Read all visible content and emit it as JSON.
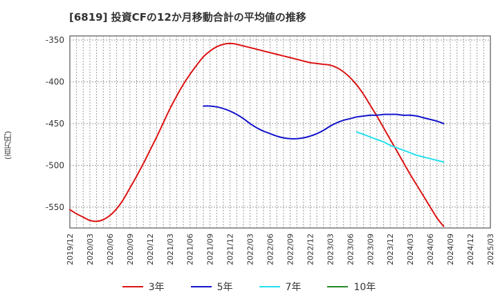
{
  "chart_data": {
    "type": "line",
    "title": "[6819]  投資CFの12か月移動合計の平均値の推移",
    "ylabel": "(百万円)",
    "xlabel": "",
    "ylim": [
      -575,
      -345
    ],
    "yticks": [
      -350,
      -400,
      -450,
      -500,
      -550
    ],
    "ytick_labels": [
      "-350",
      "-400",
      "-450",
      "-500",
      "-550"
    ],
    "xtick_labels": [
      "2019/12",
      "2020/03",
      "2020/06",
      "2020/09",
      "2020/12",
      "2021/03",
      "2021/06",
      "2021/09",
      "2021/12",
      "2022/03",
      "2022/06",
      "2022/09",
      "2022/12",
      "2023/03",
      "2023/06",
      "2023/09",
      "2023/12",
      "2024/03",
      "2024/06",
      "2024/09",
      "2024/12",
      "2025/03"
    ],
    "grid": true,
    "legend_position": "bottom",
    "series": [
      {
        "name": "3年",
        "color": "#dd1111",
        "points": [
          [
            "2019/12",
            -553
          ],
          [
            "2020/01",
            -558
          ],
          [
            "2020/02",
            -562
          ],
          [
            "2020/03",
            -566
          ],
          [
            "2020/04",
            -567
          ],
          [
            "2020/05",
            -565
          ],
          [
            "2020/06",
            -560
          ],
          [
            "2020/07",
            -552
          ],
          [
            "2020/08",
            -541
          ],
          [
            "2020/09",
            -527
          ],
          [
            "2020/10",
            -513
          ],
          [
            "2020/11",
            -498
          ],
          [
            "2020/12",
            -482
          ],
          [
            "2021/01",
            -466
          ],
          [
            "2021/02",
            -449
          ],
          [
            "2021/03",
            -432
          ],
          [
            "2021/04",
            -417
          ],
          [
            "2021/05",
            -403
          ],
          [
            "2021/06",
            -391
          ],
          [
            "2021/07",
            -380
          ],
          [
            "2021/08",
            -370
          ],
          [
            "2021/09",
            -363
          ],
          [
            "2021/10",
            -358
          ],
          [
            "2021/11",
            -355
          ],
          [
            "2021/12",
            -354
          ],
          [
            "2022/01",
            -355
          ],
          [
            "2022/02",
            -357
          ],
          [
            "2022/03",
            -359
          ],
          [
            "2022/04",
            -361
          ],
          [
            "2022/05",
            -363
          ],
          [
            "2022/06",
            -365
          ],
          [
            "2022/07",
            -367
          ],
          [
            "2022/08",
            -369
          ],
          [
            "2022/09",
            -371
          ],
          [
            "2022/10",
            -373
          ],
          [
            "2022/11",
            -375
          ],
          [
            "2022/12",
            -377
          ],
          [
            "2023/01",
            -378
          ],
          [
            "2023/02",
            -379
          ],
          [
            "2023/03",
            -380
          ],
          [
            "2023/04",
            -383
          ],
          [
            "2023/05",
            -388
          ],
          [
            "2023/06",
            -395
          ],
          [
            "2023/07",
            -404
          ],
          [
            "2023/08",
            -415
          ],
          [
            "2023/09",
            -428
          ],
          [
            "2023/10",
            -441
          ],
          [
            "2023/11",
            -455
          ],
          [
            "2023/12",
            -469
          ],
          [
            "2024/01",
            -483
          ],
          [
            "2024/02",
            -497
          ],
          [
            "2024/03",
            -511
          ],
          [
            "2024/04",
            -524
          ],
          [
            "2024/05",
            -537
          ],
          [
            "2024/06",
            -550
          ],
          [
            "2024/07",
            -563
          ],
          [
            "2024/08",
            -573
          ]
        ]
      },
      {
        "name": "5年",
        "color": "#1111cc",
        "points": [
          [
            "2021/08",
            -429
          ],
          [
            "2021/09",
            -429
          ],
          [
            "2021/10",
            -430
          ],
          [
            "2021/11",
            -432
          ],
          [
            "2021/12",
            -435
          ],
          [
            "2022/01",
            -439
          ],
          [
            "2022/02",
            -444
          ],
          [
            "2022/03",
            -450
          ],
          [
            "2022/04",
            -455
          ],
          [
            "2022/05",
            -459
          ],
          [
            "2022/06",
            -462
          ],
          [
            "2022/07",
            -465
          ],
          [
            "2022/08",
            -467
          ],
          [
            "2022/09",
            -468
          ],
          [
            "2022/10",
            -468
          ],
          [
            "2022/11",
            -467
          ],
          [
            "2022/12",
            -465
          ],
          [
            "2023/01",
            -462
          ],
          [
            "2023/02",
            -458
          ],
          [
            "2023/03",
            -453
          ],
          [
            "2023/04",
            -449
          ],
          [
            "2023/05",
            -446
          ],
          [
            "2023/06",
            -444
          ],
          [
            "2023/07",
            -442
          ],
          [
            "2023/08",
            -441
          ],
          [
            "2023/09",
            -440
          ],
          [
            "2023/10",
            -440
          ],
          [
            "2023/11",
            -439
          ],
          [
            "2023/12",
            -439
          ],
          [
            "2024/01",
            -439
          ],
          [
            "2024/02",
            -440
          ],
          [
            "2024/03",
            -440
          ],
          [
            "2024/04",
            -441
          ],
          [
            "2024/05",
            -443
          ],
          [
            "2024/06",
            -445
          ],
          [
            "2024/07",
            -447
          ],
          [
            "2024/08",
            -450
          ]
        ]
      },
      {
        "name": "7年",
        "color": "#22e0ee",
        "points": [
          [
            "2023/07",
            -460
          ],
          [
            "2023/08",
            -463
          ],
          [
            "2023/09",
            -466
          ],
          [
            "2023/10",
            -469
          ],
          [
            "2023/11",
            -472
          ],
          [
            "2023/12",
            -476
          ],
          [
            "2024/01",
            -479
          ],
          [
            "2024/02",
            -482
          ],
          [
            "2024/03",
            -485
          ],
          [
            "2024/04",
            -488
          ],
          [
            "2024/05",
            -490
          ],
          [
            "2024/06",
            -492
          ],
          [
            "2024/07",
            -494
          ],
          [
            "2024/08",
            -496
          ]
        ]
      },
      {
        "name": "10年",
        "color": "#228822",
        "points": []
      }
    ]
  }
}
